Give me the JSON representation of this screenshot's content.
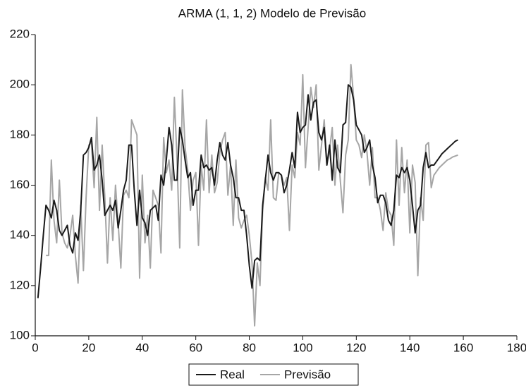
{
  "chart_data": {
    "type": "line",
    "title": "ARMA (1, 1, 2) Modelo de Previsão",
    "x": [
      1,
      2,
      3,
      4,
      5,
      6,
      7,
      8,
      9,
      10,
      11,
      12,
      13,
      14,
      15,
      16,
      17,
      18,
      19,
      20,
      21,
      22,
      23,
      24,
      25,
      26,
      27,
      28,
      29,
      30,
      31,
      32,
      33,
      34,
      35,
      36,
      37,
      38,
      39,
      40,
      41,
      42,
      43,
      44,
      45,
      46,
      47,
      48,
      49,
      50,
      51,
      52,
      53,
      54,
      55,
      56,
      57,
      58,
      59,
      60,
      61,
      62,
      63,
      64,
      65,
      66,
      67,
      68,
      69,
      70,
      71,
      72,
      73,
      74,
      75,
      76,
      77,
      78,
      79,
      80,
      81,
      82,
      83,
      84,
      85,
      86,
      87,
      88,
      89,
      90,
      91,
      92,
      93,
      94,
      95,
      96,
      97,
      98,
      99,
      100,
      101,
      102,
      103,
      104,
      105,
      106,
      107,
      108,
      109,
      110,
      111,
      112,
      113,
      114,
      115,
      116,
      117,
      118,
      119,
      120,
      121,
      122,
      123,
      124,
      125,
      126,
      127,
      128,
      129,
      130,
      131,
      132,
      133,
      134,
      135,
      136,
      137,
      138,
      139,
      140,
      141,
      142,
      143,
      144,
      145,
      146,
      147,
      148,
      149,
      150,
      151,
      152,
      153,
      154,
      155,
      156,
      157,
      158
    ],
    "series": [
      {
        "name": "Real",
        "color": "#1a1a1a",
        "values": [
          115,
          127,
          140,
          152,
          150,
          147,
          154,
          150,
          142,
          140,
          142,
          144,
          136,
          133,
          141,
          138,
          150,
          172,
          173,
          175,
          179,
          166,
          168,
          172,
          162,
          148,
          150,
          152,
          150,
          154,
          143,
          150,
          158,
          162,
          176,
          176,
          158,
          144,
          158,
          147,
          145,
          140,
          150,
          151,
          152,
          146,
          164,
          160,
          170,
          183,
          176,
          162,
          162,
          183,
          178,
          170,
          163,
          165,
          152,
          158,
          158,
          172,
          167,
          168,
          166,
          167,
          160,
          170,
          177,
          172,
          170,
          177,
          168,
          163,
          155,
          155,
          150,
          150,
          140,
          128,
          119,
          130,
          131,
          130,
          152,
          162,
          172,
          165,
          162,
          165,
          165,
          164,
          157,
          160,
          166,
          173,
          167,
          189,
          181,
          183,
          184,
          196,
          186,
          193,
          194,
          181,
          178,
          183,
          168,
          176,
          162,
          178,
          167,
          165,
          184,
          185,
          200,
          199,
          194,
          184,
          182,
          180,
          173,
          175,
          178,
          168,
          163,
          153,
          156,
          156,
          153,
          146,
          144,
          150,
          164,
          163,
          167,
          165,
          167,
          162,
          152,
          141,
          150,
          152,
          167,
          173,
          167,
          168,
          168,
          169.5,
          171,
          172.5,
          173.5,
          174.5,
          175.5,
          176.5,
          177.5,
          178
        ]
      },
      {
        "name": "Previsão",
        "color": "#a6a6a6",
        "values": [
          null,
          null,
          null,
          132,
          132,
          170,
          146,
          137,
          162,
          141,
          137,
          135,
          140,
          148,
          132,
          121,
          152,
          126,
          155,
          176,
          177,
          159,
          187,
          150,
          176,
          155,
          129,
          155,
          138,
          160,
          145,
          127,
          156,
          158,
          155,
          186,
          183,
          180,
          123,
          164,
          137,
          148,
          127,
          158,
          155,
          152,
          133,
          179,
          165,
          170,
          158,
          195,
          170,
          135,
          198,
          175,
          166,
          150,
          162,
          165,
          136,
          168,
          158,
          186,
          157,
          172,
          157,
          161,
          173,
          178,
          181,
          156,
          168,
          144,
          170,
          147,
          143,
          146,
          148,
          140,
          129,
          104,
          129,
          120,
          150,
          163,
          158,
          186,
          155,
          154,
          165,
          164,
          160,
          163,
          142,
          168,
          163,
          181,
          176,
          204,
          167,
          183,
          199,
          191,
          200,
          166,
          176,
          186,
          168,
          174,
          183,
          160,
          176,
          162,
          149,
          172,
          178,
          208,
          195,
          178,
          176,
          171,
          180,
          173,
          160,
          175,
          155,
          155,
          150,
          142,
          157,
          150,
          148,
          136,
          178,
          152,
          175,
          157,
          170,
          141,
          168,
          161,
          124,
          155,
          146,
          176,
          177,
          159,
          164,
          165.5,
          167,
          168,
          169,
          170,
          170.5,
          171.2,
          171.6,
          172
        ]
      }
    ],
    "xlim": [
      0,
      180
    ],
    "xticks": [
      0,
      20,
      40,
      60,
      80,
      100,
      120,
      140,
      160,
      180
    ],
    "ylim": [
      100,
      220
    ],
    "yticks": [
      100,
      120,
      140,
      160,
      180,
      200,
      220
    ],
    "legend": "bottom"
  }
}
